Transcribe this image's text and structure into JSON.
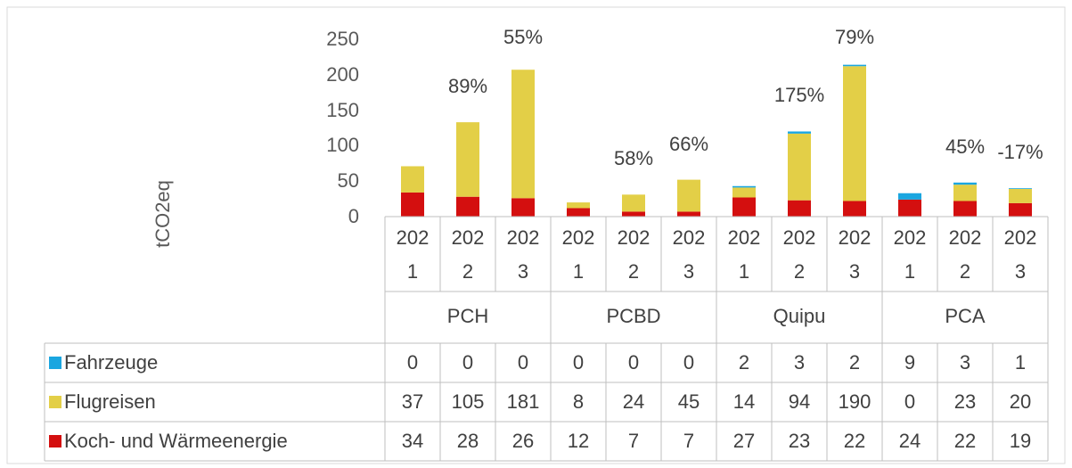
{
  "chart_data": {
    "type": "bar",
    "stacked": true,
    "y_label": "tCO2eq",
    "categories": [
      "2021",
      "2022",
      "2023",
      "2021",
      "2022",
      "2023",
      "2021",
      "2022",
      "2023",
      "2021",
      "2022",
      "2023"
    ],
    "groups": [
      "PCH",
      "PCBD",
      "Quipu",
      "PCA"
    ],
    "series": [
      {
        "name": "Fahrzeuge",
        "color": "#1aa6e0",
        "values": [
          0,
          0,
          0,
          0,
          0,
          0,
          2,
          3,
          2,
          9,
          3,
          1
        ]
      },
      {
        "name": "Flugreisen",
        "color": "#e3cf47",
        "values": [
          37,
          105,
          181,
          8,
          24,
          45,
          14,
          94,
          190,
          0,
          23,
          20
        ]
      },
      {
        "name": "Koch- und Wärmeenergie",
        "color": "#d40f0f",
        "values": [
          34,
          28,
          26,
          12,
          7,
          7,
          27,
          23,
          22,
          24,
          22,
          19
        ]
      }
    ],
    "growth_labels": [
      null,
      "89%",
      "55%",
      null,
      "58%",
      "66%",
      null,
      "175%",
      "79%",
      null,
      "45%",
      "-17%"
    ],
    "ylim": [
      0,
      250
    ],
    "yticks": [
      0,
      50,
      100,
      150,
      200,
      250
    ]
  }
}
